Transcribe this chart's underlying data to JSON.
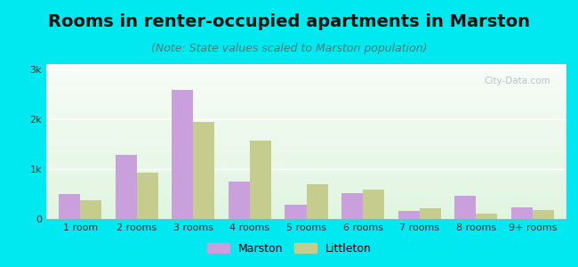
{
  "title": "Rooms in renter-occupied apartments in Marston",
  "subtitle": "(Note: State values scaled to Marston population)",
  "categories": [
    "1 room",
    "2 rooms",
    "3 rooms",
    "4 rooms",
    "5 rooms",
    "6 rooms",
    "7 rooms",
    "8 rooms",
    "9+ rooms"
  ],
  "marston_values": [
    500,
    1280,
    2580,
    750,
    290,
    510,
    155,
    460,
    230
  ],
  "littleton_values": [
    370,
    930,
    1940,
    1560,
    700,
    590,
    215,
    115,
    175
  ],
  "marston_color": "#c9a0dc",
  "littleton_color": "#c5cc8e",
  "background_outer": "#00e8f0",
  "ylim": [
    0,
    3100
  ],
  "yticks": [
    0,
    1000,
    2000,
    3000
  ],
  "ytick_labels": [
    "0",
    "1k",
    "2k",
    "3k"
  ],
  "bar_width": 0.38,
  "legend_marston": "Marston",
  "legend_littleton": "Littleton",
  "title_fontsize": 14,
  "subtitle_fontsize": 9,
  "tick_fontsize": 8
}
